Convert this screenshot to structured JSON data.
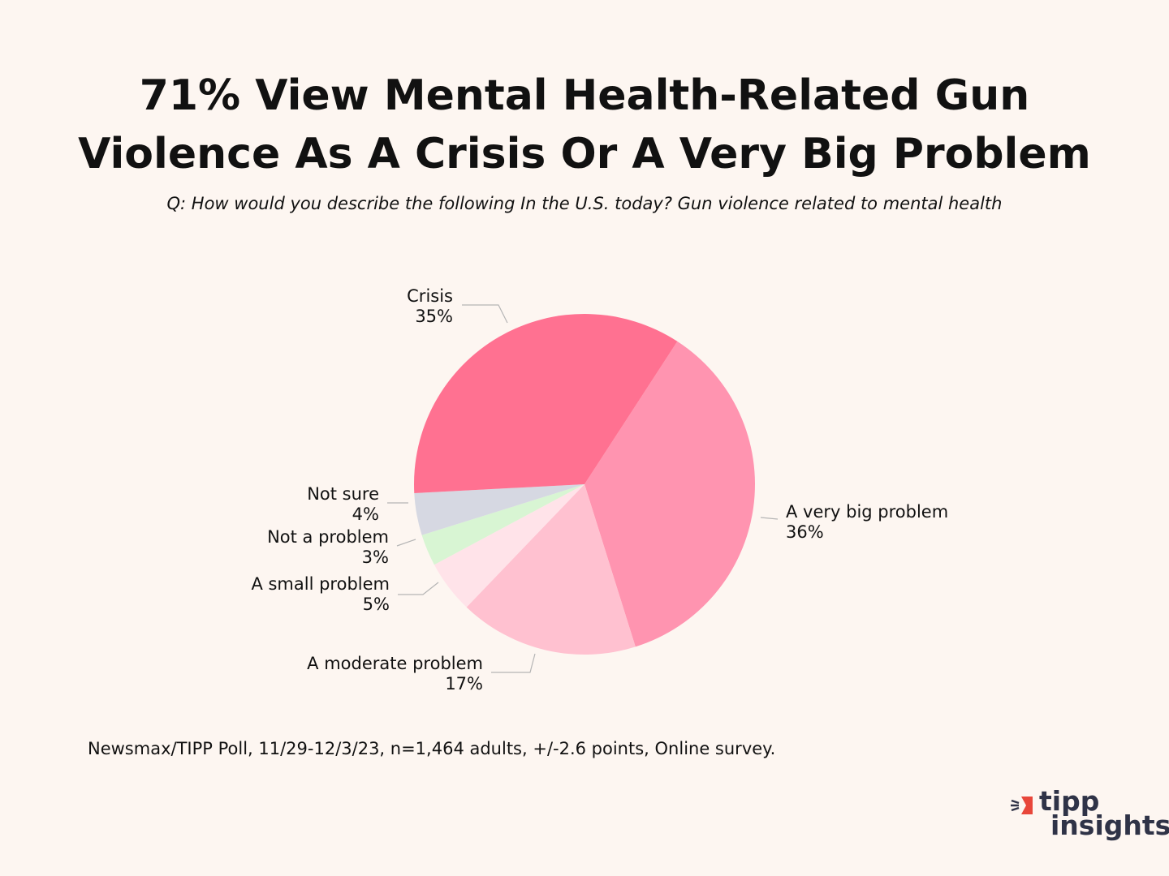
{
  "title_line1": "71% View Mental Health-Related Gun",
  "title_line2": "Violence As A Crisis Or A Very Big Problem",
  "subtitle": "Q: How would you describe the following In the U.S. today? Gun violence related to mental health",
  "source": "Newsmax/TIPP Poll, 11/29-12/3/23, n=1,464 adults, +/-2.6 points, Online survey.",
  "logo": {
    "line1": "tipp",
    "line2": "insights"
  },
  "colors": {
    "background": "#fdf6f1",
    "logo_accent": "#e8463a",
    "leader": "#b5b5b5"
  },
  "chart_data": {
    "type": "pie",
    "title": "71% View Mental Health-Related Gun Violence As A Crisis Or A Very Big Problem",
    "slices": [
      {
        "label": "A very big problem",
        "value": 36,
        "display": "36%",
        "color": "#ff94b0"
      },
      {
        "label": "A moderate problem",
        "value": 17,
        "display": "17%",
        "color": "#ffc1d0"
      },
      {
        "label": "A small problem",
        "value": 5,
        "display": "5%",
        "color": "#ffe3e9"
      },
      {
        "label": "Not a problem",
        "value": 3,
        "display": "3%",
        "color": "#d8f5d3"
      },
      {
        "label": "Not sure",
        "value": 4,
        "display": "4%",
        "color": "#d6d8e2"
      },
      {
        "label": "Crisis",
        "value": 35,
        "display": "35%",
        "color": "#ff7191"
      }
    ]
  }
}
